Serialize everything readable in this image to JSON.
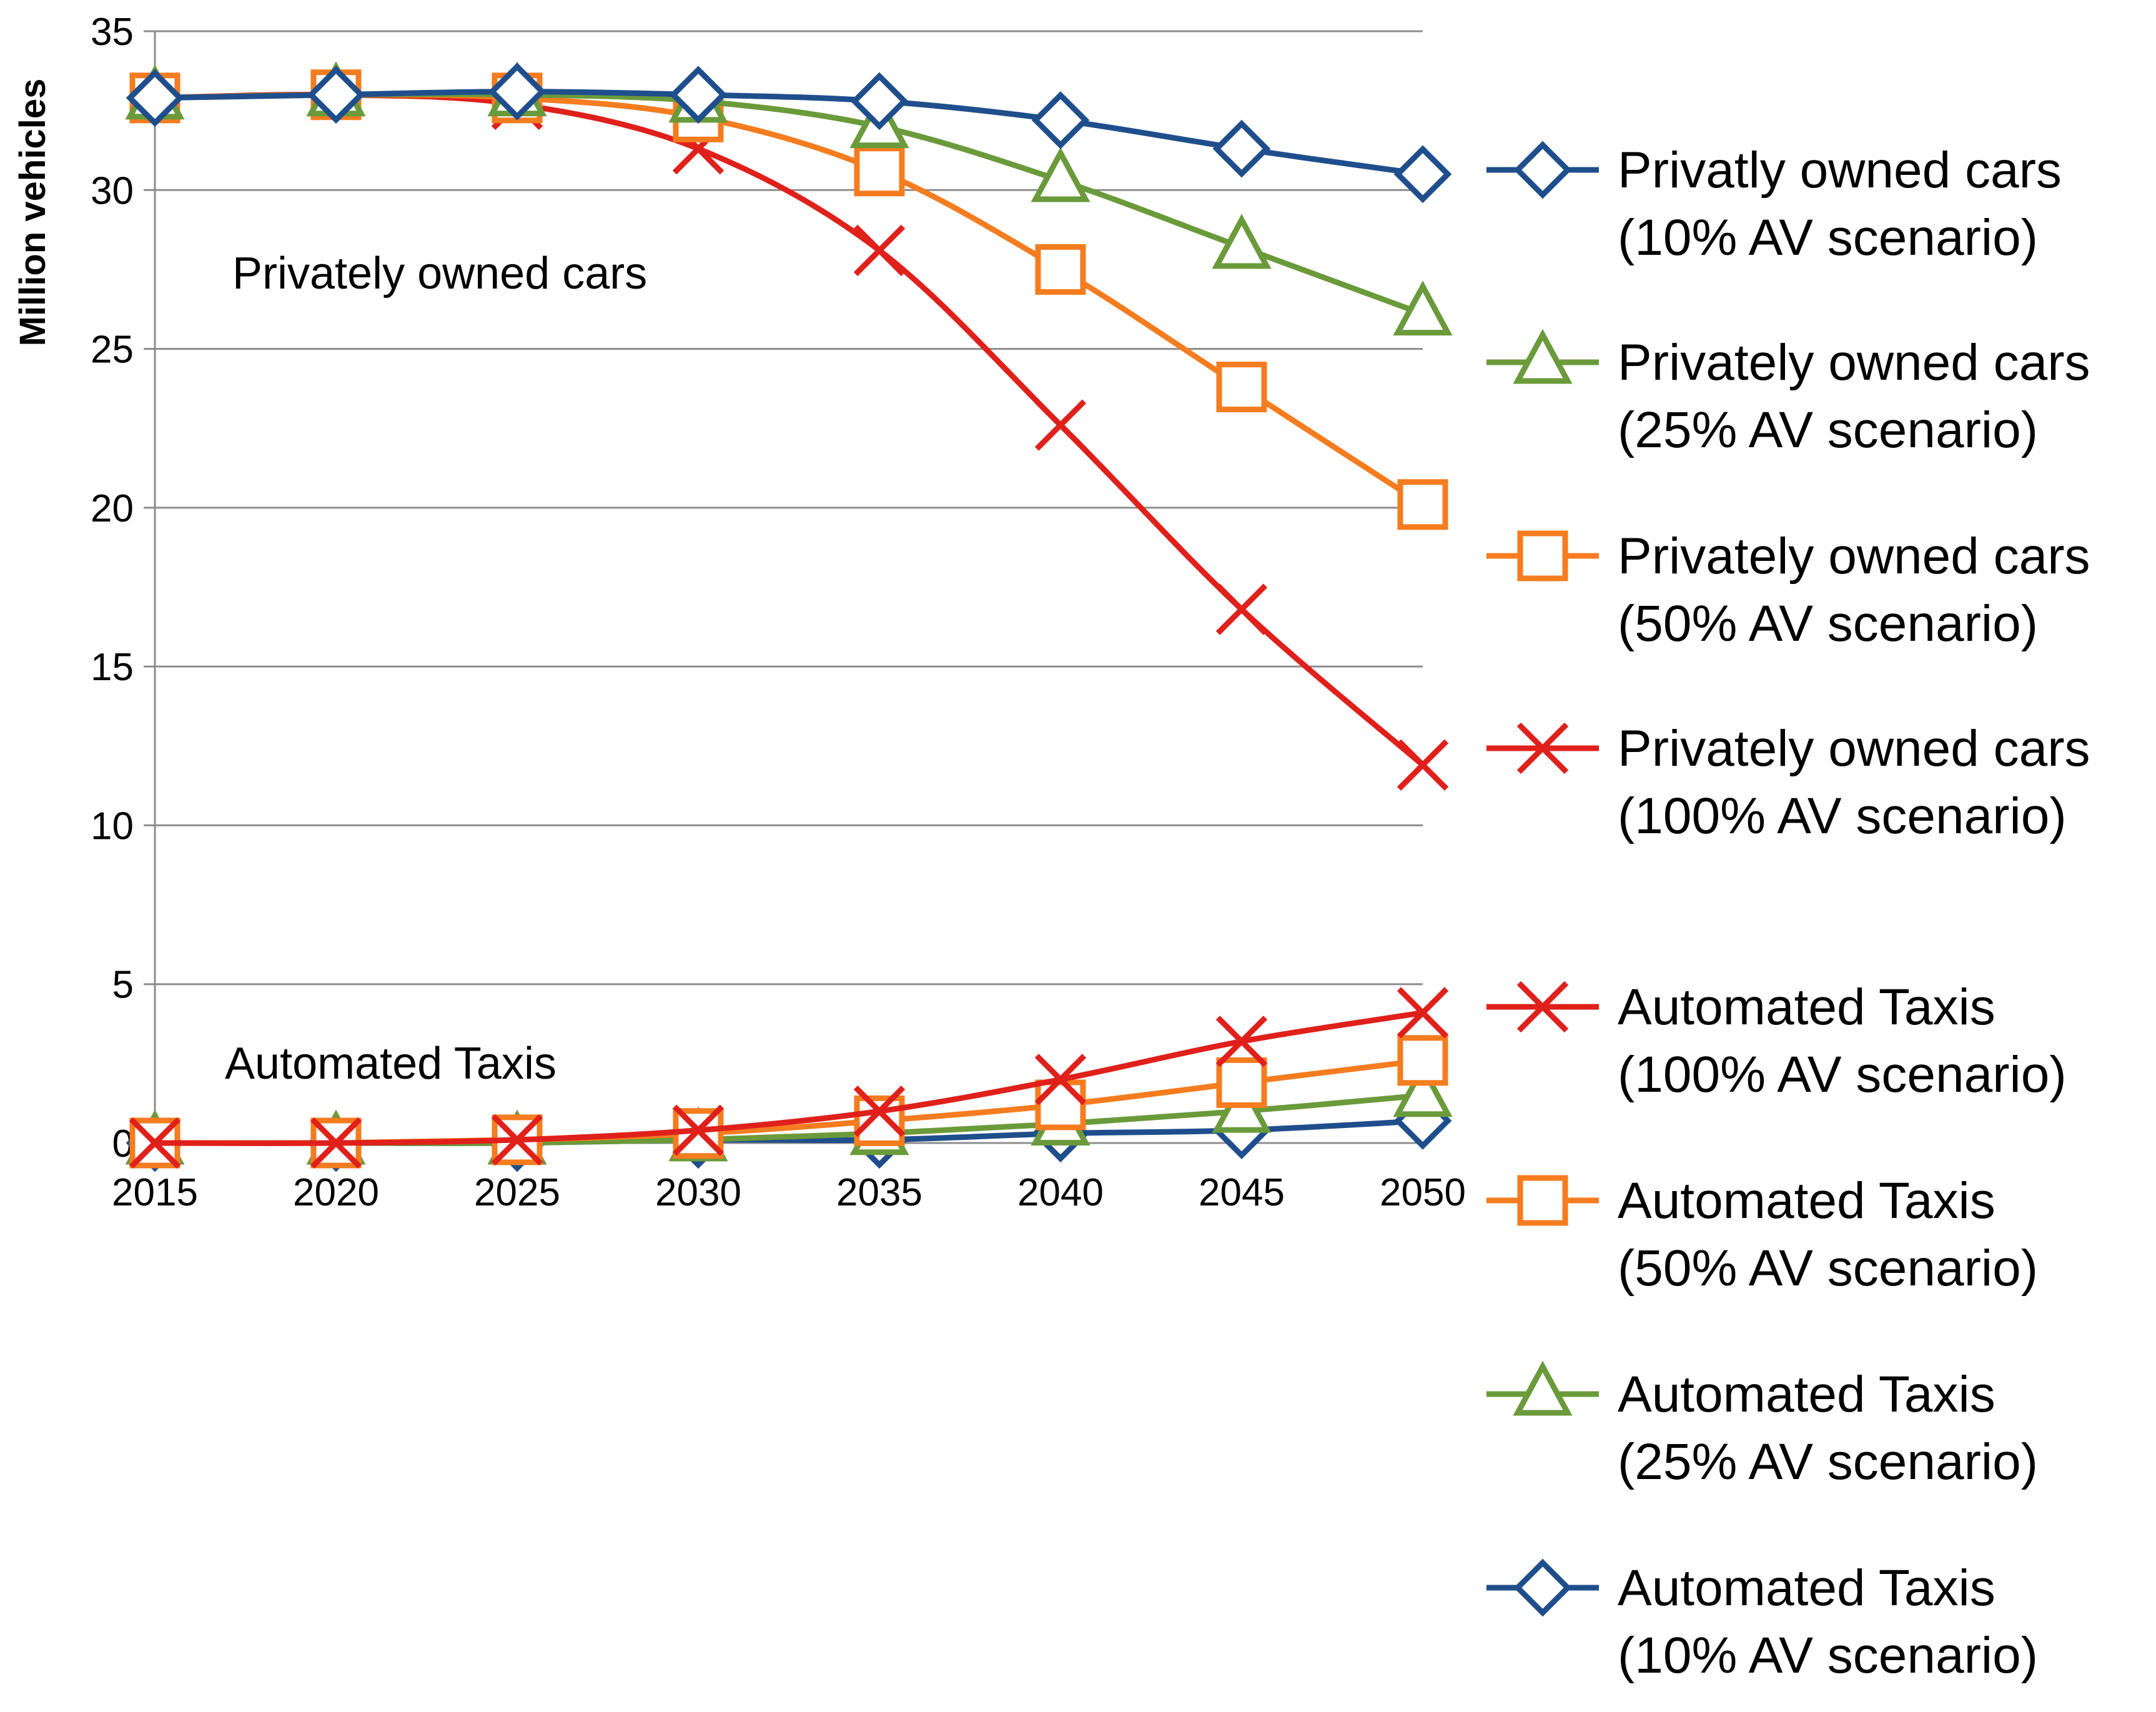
{
  "chart_data": {
    "type": "line",
    "title": "",
    "xlabel": "",
    "ylabel": "Million vehicles",
    "x": [
      "2015",
      "2020",
      "2025",
      "2030",
      "2035",
      "2040",
      "2045",
      "2050"
    ],
    "ylim": [
      0,
      35
    ],
    "yticks": [
      "0",
      "5",
      "10",
      "15",
      "20",
      "25",
      "30",
      "35"
    ],
    "grid": "horizontal",
    "legend_position": "right",
    "annotations": [
      "Privately owned cars",
      "Automated Taxis"
    ],
    "series": [
      {
        "name": "Privatly owned cars (10% AV scenario)",
        "legend_lines": [
          "Privatly owned cars",
          "(10% AV scenario)"
        ],
        "color": "#1F4E8C",
        "marker": "diamond",
        "values": [
          32.9,
          33.0,
          33.1,
          33.0,
          32.8,
          32.2,
          31.3,
          30.5
        ]
      },
      {
        "name": "Privately owned cars (25% AV scenario)",
        "legend_lines": [
          "Privately owned cars",
          "(25% AV scenario)"
        ],
        "color": "#6A9A3A",
        "marker": "triangle",
        "values": [
          32.9,
          33.0,
          33.0,
          32.8,
          32.0,
          30.3,
          28.2,
          26.1
        ]
      },
      {
        "name": "Privately owned cars (50% AV scenario)",
        "legend_lines": [
          "Privately owned cars",
          "(50% AV scenario)"
        ],
        "color": "#F57C1F",
        "marker": "square",
        "values": [
          32.9,
          33.0,
          32.9,
          32.3,
          30.6,
          27.5,
          23.8,
          20.1
        ]
      },
      {
        "name": "Privately owned cars (100% AV scenario)",
        "legend_lines": [
          "Privately owned cars",
          "(100% AV scenario)"
        ],
        "color": "#E0201B",
        "marker": "x",
        "values": [
          32.9,
          33.0,
          32.7,
          31.3,
          28.1,
          22.6,
          16.8,
          11.9
        ]
      },
      {
        "name": "Automated Taxis (100% AV scenario)",
        "legend_lines": [
          "Automated Taxis",
          "(100% AV scenario)"
        ],
        "color": "#E0201B",
        "marker": "x",
        "values": [
          0.0,
          0.0,
          0.1,
          0.4,
          1.0,
          2.0,
          3.2,
          4.1
        ]
      },
      {
        "name": "Automated Taxis (50% AV scenario)",
        "legend_lines": [
          "Automated Taxis",
          "(50% AV scenario)"
        ],
        "color": "#F57C1F",
        "marker": "square",
        "values": [
          0.0,
          0.0,
          0.1,
          0.3,
          0.7,
          1.2,
          1.9,
          2.6
        ]
      },
      {
        "name": "Automated Taxis (25% AV scenario)",
        "legend_lines": [
          "Automated Taxis",
          "(25% AV scenario)"
        ],
        "color": "#6A9A3A",
        "marker": "triangle",
        "values": [
          0.0,
          0.0,
          0.0,
          0.1,
          0.3,
          0.6,
          1.0,
          1.5
        ]
      },
      {
        "name": "Automated Taxis (10% AV scenario)",
        "legend_lines": [
          "Automated Taxis",
          "(10% AV scenario)"
        ],
        "color": "#1F4E8C",
        "marker": "diamond",
        "values": [
          0.0,
          0.0,
          0.0,
          0.1,
          0.1,
          0.3,
          0.4,
          0.7
        ]
      }
    ]
  }
}
